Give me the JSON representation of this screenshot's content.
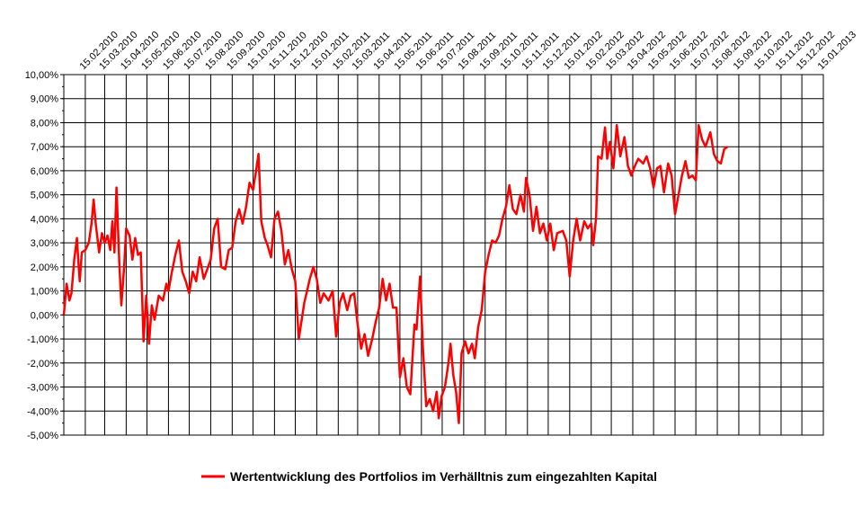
{
  "chart_data": {
    "type": "line",
    "title": "",
    "xlabel": "",
    "ylabel": "",
    "ylim": [
      -5,
      10
    ],
    "yticks": [
      -5,
      -4,
      -3,
      -2,
      -1,
      0,
      1,
      2,
      3,
      4,
      5,
      6,
      7,
      8,
      9,
      10
    ],
    "ytick_labels": [
      "-5,00%",
      "-4,00%",
      "-3,00%",
      "-2,00%",
      "-1,00%",
      "0,00%",
      "1,00%",
      "2,00%",
      "3,00%",
      "4,00%",
      "5,00%",
      "6,00%",
      "7,00%",
      "8,00%",
      "9,00%",
      "10,00%"
    ],
    "xlim": [
      "2010-01-15",
      "2013-01-15"
    ],
    "xtick_labels": [
      "15.02.2010",
      "15.03.2010",
      "15.04.2010",
      "15.05.2010",
      "15.06.2010",
      "15.07.2010",
      "15.08.2010",
      "15.09.2010",
      "15.10.2010",
      "15.11.2010",
      "15.12.2010",
      "15.01.2011",
      "15.02.2011",
      "15.03.2011",
      "15.04.2011",
      "15.05.2011",
      "15.06.2011",
      "15.07.2011",
      "15.08.2011",
      "15.09.2011",
      "15.10.2011",
      "15.11.2011",
      "15.12.2011",
      "15.01.2012",
      "15.02.2012",
      "15.03.2012",
      "15.04.2012",
      "15.05.2012",
      "15.06.2012",
      "15.07.2012",
      "15.08.2012",
      "15.09.2012",
      "15.10.2012",
      "15.11.2012",
      "15.12.2012",
      "15.01.2013"
    ],
    "grid": true,
    "legend_position": "bottom",
    "series": [
      {
        "name": "Wertentwicklung des Portfolios im Verhälltnis zum eingezahlten Kapital",
        "color": "#ff0000",
        "points": [
          [
            "2010-01-15",
            0.0
          ],
          [
            "2010-01-19",
            1.3
          ],
          [
            "2010-01-23",
            0.6
          ],
          [
            "2010-01-26",
            0.9
          ],
          [
            "2010-01-30",
            2.3
          ],
          [
            "2010-02-03",
            3.2
          ],
          [
            "2010-02-05",
            2.2
          ],
          [
            "2010-02-07",
            1.4
          ],
          [
            "2010-02-10",
            2.6
          ],
          [
            "2010-02-15",
            2.7
          ],
          [
            "2010-02-20",
            3.0
          ],
          [
            "2010-02-24",
            3.8
          ],
          [
            "2010-02-27",
            4.8
          ],
          [
            "2010-03-02",
            3.8
          ],
          [
            "2010-03-07",
            2.6
          ],
          [
            "2010-03-11",
            3.4
          ],
          [
            "2010-03-15",
            3.0
          ],
          [
            "2010-03-19",
            3.3
          ],
          [
            "2010-03-23",
            2.7
          ],
          [
            "2010-03-26",
            3.9
          ],
          [
            "2010-03-29",
            2.6
          ],
          [
            "2010-04-01",
            5.3
          ],
          [
            "2010-04-05",
            2.2
          ],
          [
            "2010-04-08",
            0.4
          ],
          [
            "2010-04-12",
            2.0
          ],
          [
            "2010-04-15",
            3.6
          ],
          [
            "2010-04-20",
            3.3
          ],
          [
            "2010-04-24",
            2.3
          ],
          [
            "2010-04-28",
            3.2
          ],
          [
            "2010-05-02",
            2.5
          ],
          [
            "2010-05-06",
            2.6
          ],
          [
            "2010-05-10",
            -1.1
          ],
          [
            "2010-05-14",
            0.8
          ],
          [
            "2010-05-18",
            -1.2
          ],
          [
            "2010-05-22",
            0.4
          ],
          [
            "2010-05-26",
            -0.2
          ],
          [
            "2010-06-01",
            0.8
          ],
          [
            "2010-06-07",
            0.6
          ],
          [
            "2010-06-12",
            1.3
          ],
          [
            "2010-06-15",
            1.0
          ],
          [
            "2010-06-20",
            1.8
          ],
          [
            "2010-06-25",
            2.5
          ],
          [
            "2010-06-30",
            3.1
          ],
          [
            "2010-07-05",
            1.8
          ],
          [
            "2010-07-10",
            1.4
          ],
          [
            "2010-07-15",
            0.9
          ],
          [
            "2010-07-20",
            1.8
          ],
          [
            "2010-07-25",
            1.4
          ],
          [
            "2010-07-30",
            2.4
          ],
          [
            "2010-08-05",
            1.5
          ],
          [
            "2010-08-10",
            1.9
          ],
          [
            "2010-08-15",
            2.3
          ],
          [
            "2010-08-20",
            3.6
          ],
          [
            "2010-08-25",
            4.0
          ],
          [
            "2010-08-30",
            2.0
          ],
          [
            "2010-09-05",
            1.9
          ],
          [
            "2010-09-10",
            2.7
          ],
          [
            "2010-09-15",
            2.8
          ],
          [
            "2010-09-20",
            3.9
          ],
          [
            "2010-09-25",
            4.4
          ],
          [
            "2010-09-30",
            3.8
          ],
          [
            "2010-10-05",
            4.5
          ],
          [
            "2010-10-10",
            5.5
          ],
          [
            "2010-10-15",
            5.2
          ],
          [
            "2010-10-20",
            6.1
          ],
          [
            "2010-10-23",
            6.7
          ],
          [
            "2010-10-27",
            3.9
          ],
          [
            "2010-11-01",
            3.2
          ],
          [
            "2010-11-05",
            2.9
          ],
          [
            "2010-11-10",
            2.4
          ],
          [
            "2010-11-15",
            4.0
          ],
          [
            "2010-11-20",
            4.3
          ],
          [
            "2010-11-25",
            3.5
          ],
          [
            "2010-11-30",
            2.1
          ],
          [
            "2010-12-05",
            2.7
          ],
          [
            "2010-12-10",
            1.9
          ],
          [
            "2010-12-15",
            1.4
          ],
          [
            "2010-12-20",
            -1.0
          ],
          [
            "2010-12-28",
            0.5
          ],
          [
            "2011-01-05",
            1.5
          ],
          [
            "2011-01-10",
            2.0
          ],
          [
            "2011-01-15",
            1.5
          ],
          [
            "2011-01-20",
            0.5
          ],
          [
            "2011-01-25",
            0.9
          ],
          [
            "2011-02-01",
            0.6
          ],
          [
            "2011-02-07",
            1.0
          ],
          [
            "2011-02-12",
            -0.9
          ],
          [
            "2011-02-17",
            0.5
          ],
          [
            "2011-02-22",
            0.9
          ],
          [
            "2011-02-28",
            0.2
          ],
          [
            "2011-03-05",
            0.8
          ],
          [
            "2011-03-10",
            0.9
          ],
          [
            "2011-03-15",
            -0.4
          ],
          [
            "2011-03-20",
            -1.4
          ],
          [
            "2011-03-25",
            -0.8
          ],
          [
            "2011-03-30",
            -1.7
          ],
          [
            "2011-04-05",
            -1.0
          ],
          [
            "2011-04-10",
            -0.3
          ],
          [
            "2011-04-15",
            0.3
          ],
          [
            "2011-04-20",
            1.5
          ],
          [
            "2011-04-25",
            0.6
          ],
          [
            "2011-04-30",
            1.3
          ],
          [
            "2011-05-05",
            0.3
          ],
          [
            "2011-05-10",
            0.3
          ],
          [
            "2011-05-15",
            -2.6
          ],
          [
            "2011-05-20",
            -1.8
          ],
          [
            "2011-05-25",
            -3.0
          ],
          [
            "2011-05-30",
            -3.3
          ],
          [
            "2011-06-05",
            -0.4
          ],
          [
            "2011-06-08",
            -0.6
          ],
          [
            "2011-06-13",
            1.6
          ],
          [
            "2011-06-17",
            -1.3
          ],
          [
            "2011-06-22",
            -3.8
          ],
          [
            "2011-06-27",
            -3.5
          ],
          [
            "2011-07-02",
            -4.0
          ],
          [
            "2011-07-07",
            -3.2
          ],
          [
            "2011-07-10",
            -4.3
          ],
          [
            "2011-07-14",
            -3.4
          ],
          [
            "2011-07-19",
            -3.0
          ],
          [
            "2011-07-24",
            -2.0
          ],
          [
            "2011-07-27",
            -1.2
          ],
          [
            "2011-07-31",
            -2.5
          ],
          [
            "2011-08-04",
            -3.2
          ],
          [
            "2011-08-08",
            -4.5
          ],
          [
            "2011-08-12",
            -1.6
          ],
          [
            "2011-08-17",
            -1.1
          ],
          [
            "2011-08-22",
            -1.6
          ],
          [
            "2011-08-27",
            -1.2
          ],
          [
            "2011-08-31",
            -1.8
          ],
          [
            "2011-09-05",
            -0.5
          ],
          [
            "2011-09-10",
            0.2
          ],
          [
            "2011-09-15",
            1.8
          ],
          [
            "2011-09-20",
            2.5
          ],
          [
            "2011-09-25",
            3.1
          ],
          [
            "2011-09-30",
            3.0
          ],
          [
            "2011-10-05",
            3.3
          ],
          [
            "2011-10-10",
            4.0
          ],
          [
            "2011-10-15",
            4.5
          ],
          [
            "2011-10-20",
            5.4
          ],
          [
            "2011-10-25",
            4.4
          ],
          [
            "2011-10-30",
            4.2
          ],
          [
            "2011-11-05",
            5.0
          ],
          [
            "2011-11-10",
            4.3
          ],
          [
            "2011-11-13",
            5.7
          ],
          [
            "2011-11-18",
            5.0
          ],
          [
            "2011-11-23",
            3.5
          ],
          [
            "2011-11-28",
            4.5
          ],
          [
            "2011-12-03",
            3.4
          ],
          [
            "2011-12-08",
            3.8
          ],
          [
            "2011-12-13",
            3.1
          ],
          [
            "2011-12-18",
            3.8
          ],
          [
            "2011-12-23",
            2.7
          ],
          [
            "2011-12-28",
            3.4
          ],
          [
            "2012-01-05",
            3.5
          ],
          [
            "2012-01-10",
            3.1
          ],
          [
            "2012-01-15",
            1.6
          ],
          [
            "2012-01-20",
            3.1
          ],
          [
            "2012-01-25",
            4.0
          ],
          [
            "2012-01-30",
            3.1
          ],
          [
            "2012-02-05",
            3.9
          ],
          [
            "2012-02-10",
            3.6
          ],
          [
            "2012-02-15",
            3.8
          ],
          [
            "2012-02-18",
            2.9
          ],
          [
            "2012-02-22",
            4.0
          ],
          [
            "2012-02-25",
            6.6
          ],
          [
            "2012-03-01",
            6.5
          ],
          [
            "2012-03-06",
            7.8
          ],
          [
            "2012-03-09",
            6.5
          ],
          [
            "2012-03-13",
            7.2
          ],
          [
            "2012-03-18",
            6.1
          ],
          [
            "2012-03-23",
            7.9
          ],
          [
            "2012-03-28",
            6.6
          ],
          [
            "2012-04-03",
            7.4
          ],
          [
            "2012-04-08",
            6.2
          ],
          [
            "2012-04-13",
            5.8
          ],
          [
            "2012-04-18",
            6.2
          ],
          [
            "2012-04-23",
            6.5
          ],
          [
            "2012-04-30",
            6.3
          ],
          [
            "2012-05-05",
            6.6
          ],
          [
            "2012-05-10",
            6.1
          ],
          [
            "2012-05-15",
            5.3
          ],
          [
            "2012-05-20",
            6.1
          ],
          [
            "2012-05-25",
            6.2
          ],
          [
            "2012-05-30",
            5.1
          ],
          [
            "2012-06-05",
            6.3
          ],
          [
            "2012-06-10",
            5.8
          ],
          [
            "2012-06-15",
            4.2
          ],
          [
            "2012-06-20",
            5.0
          ],
          [
            "2012-06-25",
            5.8
          ],
          [
            "2012-06-30",
            6.4
          ],
          [
            "2012-07-05",
            5.7
          ],
          [
            "2012-07-10",
            5.8
          ],
          [
            "2012-07-15",
            5.6
          ],
          [
            "2012-07-19",
            7.9
          ],
          [
            "2012-07-24",
            7.3
          ],
          [
            "2012-07-29",
            7.0
          ],
          [
            "2012-08-05",
            7.6
          ],
          [
            "2012-08-10",
            6.7
          ],
          [
            "2012-08-15",
            6.4
          ],
          [
            "2012-08-20",
            6.3
          ],
          [
            "2012-08-25",
            6.9
          ],
          [
            "2012-08-30",
            7.0
          ]
        ]
      }
    ]
  }
}
